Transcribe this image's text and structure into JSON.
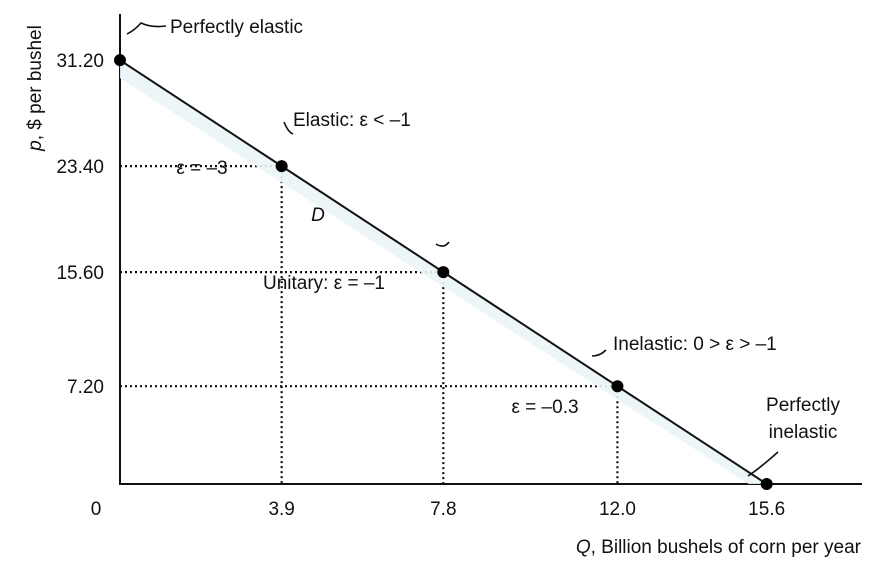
{
  "chart_data": {
    "type": "line",
    "title": "",
    "xlabel": {
      "var": "Q",
      "rest": ", Billion bushels of corn per year"
    },
    "ylabel": {
      "var": "p",
      "rest": ", $ per bushel"
    },
    "xlim": [
      0,
      17.9
    ],
    "ylim": [
      0,
      34.6
    ],
    "origin_label": "0",
    "x_ticks": [
      {
        "value": 3.9,
        "label": "3.9"
      },
      {
        "value": 7.8,
        "label": "7.8"
      },
      {
        "value": 12.0,
        "label": "12.0"
      },
      {
        "value": 15.6,
        "label": "15.6"
      }
    ],
    "y_ticks": [
      {
        "value": 31.2,
        "label": "31.20"
      },
      {
        "value": 23.4,
        "label": "23.40"
      },
      {
        "value": 15.6,
        "label": "15.60"
      },
      {
        "value": 7.2,
        "label": "7.20"
      }
    ],
    "series": [
      {
        "name": "D",
        "x": [
          0,
          15.6
        ],
        "y": [
          31.2,
          0
        ]
      }
    ],
    "points": [
      {
        "x": 0,
        "y": 31.2
      },
      {
        "x": 3.9,
        "y": 23.4,
        "label": "ε = –3"
      },
      {
        "x": 7.8,
        "y": 15.6,
        "label": "Unitary: ε = –1"
      },
      {
        "x": 12.0,
        "y": 7.2,
        "label": "ε = –0.3"
      },
      {
        "x": 15.6,
        "y": 0
      }
    ],
    "annotations": {
      "perfectly_elastic": "Perfectly elastic",
      "elastic": "Elastic: ε < –1",
      "inelastic": "Inelastic: 0 > ε > –1",
      "perfectly_inelastic_1": "Perfectly",
      "perfectly_inelastic_2": "inelastic"
    },
    "grid": false,
    "legend": "none"
  }
}
